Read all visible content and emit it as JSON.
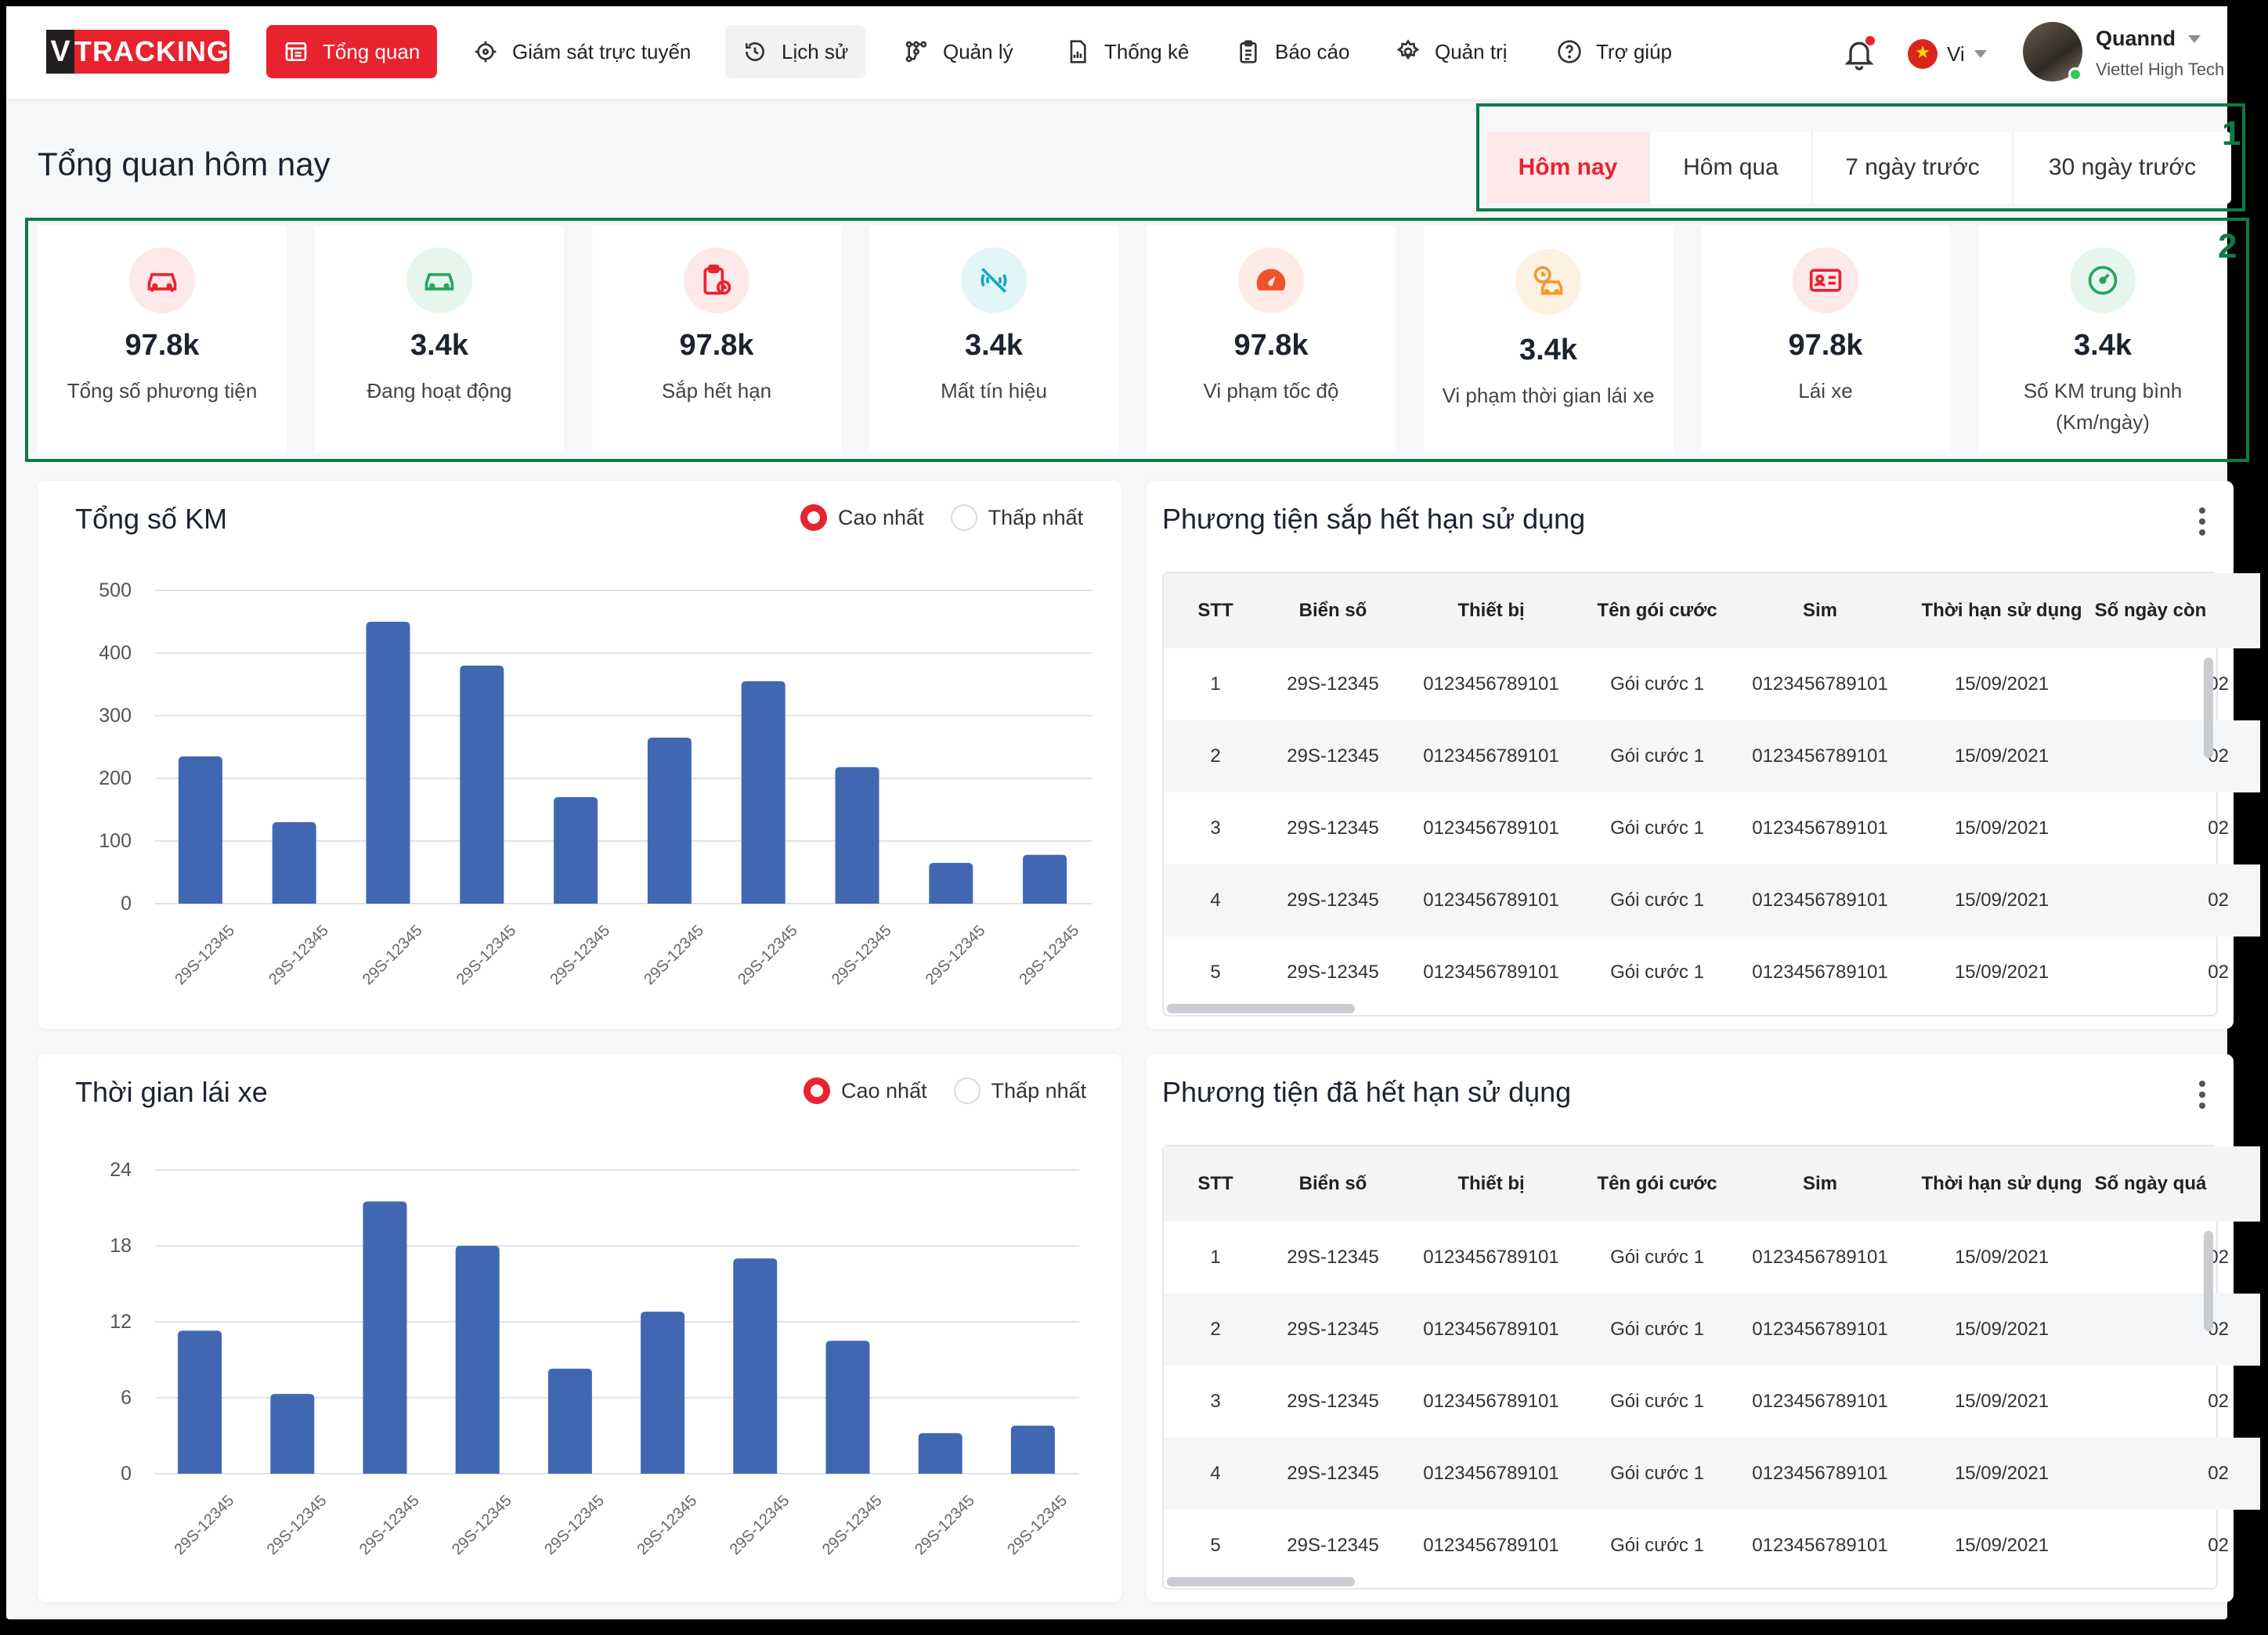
{
  "logo": {
    "v": "V",
    "text": "TRACKING"
  },
  "nav": [
    {
      "label": "Tổng quan",
      "icon": "dashboard-icon"
    },
    {
      "label": "Giám sát trực tuyến",
      "icon": "target-icon"
    },
    {
      "label": "Lịch sử",
      "icon": "history-icon"
    },
    {
      "label": "Quản lý",
      "icon": "route-icon"
    },
    {
      "label": "Thống kê",
      "icon": "report-chart-icon"
    },
    {
      "label": "Báo cáo",
      "icon": "clipboard-icon"
    },
    {
      "label": "Quản trị",
      "icon": "gear-icon"
    },
    {
      "label": "Trợ giúp",
      "icon": "help-icon"
    }
  ],
  "lang": "Vi",
  "user": {
    "name": "Quannd",
    "org": "Viettel High Tech"
  },
  "page_title": "Tổng quan hôm nay",
  "tabs": [
    "Hôm nay",
    "Hôm qua",
    "7 ngày trước",
    "30 ngày trước"
  ],
  "callouts": [
    "1",
    "2"
  ],
  "stats": [
    {
      "value": "97.8k",
      "label": "Tổng số phương tiện",
      "icon": "car-icon",
      "color": "#e8232f",
      "bg": "#fde8ea"
    },
    {
      "value": "3.4k",
      "label": "Đang hoạt động",
      "icon": "car-active-icon",
      "color": "#26a65b",
      "bg": "#e6f6ec"
    },
    {
      "value": "97.8k",
      "label": "Sắp hết hạn",
      "icon": "clipboard-clock-icon",
      "color": "#e8232f",
      "bg": "#fde8ea"
    },
    {
      "value": "3.4k",
      "label": "Mất tín hiệu",
      "icon": "signal-off-icon",
      "color": "#17a9b8",
      "bg": "#e2f6f8"
    },
    {
      "value": "97.8k",
      "label": "Vi phạm tốc độ",
      "icon": "speedometer-icon",
      "color": "#f0512d",
      "bg": "#fdebe5"
    },
    {
      "value": "3.4k",
      "label": "Vi phạm thời gian lái xe",
      "icon": "car-clock-icon",
      "color": "#f39a2b",
      "bg": "#fdf1e2"
    },
    {
      "value": "97.8k",
      "label": "Lái xe",
      "icon": "id-card-icon",
      "color": "#e8232f",
      "bg": "#fde8ea"
    },
    {
      "value": "3.4k",
      "label": "Số KM trung bình (Km/ngày)",
      "icon": "gauge-icon",
      "color": "#26a65b",
      "bg": "#e6f6ec"
    }
  ],
  "radio": {
    "high": "Cao nhất",
    "low": "Thấp nhất"
  },
  "colors": {
    "accent": "#e8232f",
    "bar": "#4267b2",
    "callout": "#0e7a46"
  },
  "chart_data": [
    {
      "type": "bar",
      "title": "Tổng số KM",
      "categories": [
        "29S-12345",
        "29S-12345",
        "29S-12345",
        "29S-12345",
        "29S-12345",
        "29S-12345",
        "29S-12345",
        "29S-12345",
        "29S-12345",
        "29S-12345"
      ],
      "values": [
        235,
        130,
        450,
        380,
        170,
        265,
        355,
        218,
        65,
        78
      ],
      "ylim": [
        0,
        500
      ],
      "yticks": [
        0,
        100,
        200,
        300,
        400,
        500
      ],
      "grid": true
    },
    {
      "type": "bar",
      "title": "Thời gian lái xe",
      "categories": [
        "29S-12345",
        "29S-12345",
        "29S-12345",
        "29S-12345",
        "29S-12345",
        "29S-12345",
        "29S-12345",
        "29S-12345",
        "29S-12345",
        "29S-12345"
      ],
      "values": [
        11.3,
        6.3,
        21.5,
        18,
        8.3,
        12.8,
        17,
        10.5,
        3.2,
        3.8
      ],
      "ylim": [
        0,
        24
      ],
      "yticks": [
        0,
        6,
        12,
        18,
        24
      ],
      "grid": true
    }
  ],
  "tables": [
    {
      "title": "Phương tiện sắp hết hạn sử dụng",
      "headers": [
        "STT",
        "Biển số",
        "Thiết bị",
        "Tên gói cước",
        "Sim",
        "Thời hạn sử dụng",
        "Số ngày còn"
      ],
      "rows": [
        [
          "1",
          "29S-12345",
          "0123456789101",
          "Gói cước 1",
          "0123456789101",
          "15/09/2021",
          "02"
        ],
        [
          "2",
          "29S-12345",
          "0123456789101",
          "Gói cước 1",
          "0123456789101",
          "15/09/2021",
          "02"
        ],
        [
          "3",
          "29S-12345",
          "0123456789101",
          "Gói cước 1",
          "0123456789101",
          "15/09/2021",
          "02"
        ],
        [
          "4",
          "29S-12345",
          "0123456789101",
          "Gói cước 1",
          "0123456789101",
          "15/09/2021",
          "02"
        ],
        [
          "5",
          "29S-12345",
          "0123456789101",
          "Gói cước 1",
          "0123456789101",
          "15/09/2021",
          "02"
        ]
      ]
    },
    {
      "title": "Phương tiện đã hết hạn sử dụng",
      "headers": [
        "STT",
        "Biển số",
        "Thiết bị",
        "Tên gói cước",
        "Sim",
        "Thời hạn sử dụng",
        "Số ngày quá"
      ],
      "rows": [
        [
          "1",
          "29S-12345",
          "0123456789101",
          "Gói cước 1",
          "0123456789101",
          "15/09/2021",
          "02"
        ],
        [
          "2",
          "29S-12345",
          "0123456789101",
          "Gói cước 1",
          "0123456789101",
          "15/09/2021",
          "02"
        ],
        [
          "3",
          "29S-12345",
          "0123456789101",
          "Gói cước 1",
          "0123456789101",
          "15/09/2021",
          "02"
        ],
        [
          "4",
          "29S-12345",
          "0123456789101",
          "Gói cước 1",
          "0123456789101",
          "15/09/2021",
          "02"
        ],
        [
          "5",
          "29S-12345",
          "0123456789101",
          "Gói cước 1",
          "0123456789101",
          "15/09/2021",
          "02"
        ]
      ]
    }
  ]
}
